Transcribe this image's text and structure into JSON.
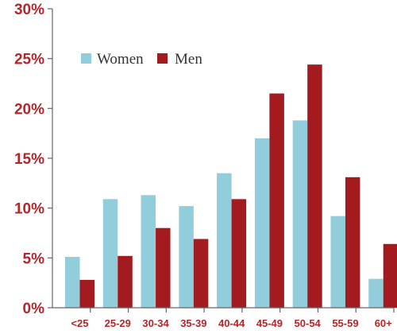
{
  "chart_data": {
    "type": "bar",
    "categories": [
      "<25",
      "25-29",
      "30-34",
      "35-39",
      "40-44",
      "45-49",
      "50-54",
      "55-59",
      "60+"
    ],
    "series": [
      {
        "name": "Women",
        "color": "#92cddc",
        "values": [
          5.1,
          10.9,
          11.3,
          10.2,
          13.5,
          17.0,
          18.8,
          9.2,
          2.9
        ]
      },
      {
        "name": "Men",
        "color": "#a31b1f",
        "values": [
          2.8,
          5.2,
          8.0,
          6.9,
          10.9,
          21.5,
          24.4,
          13.1,
          6.4
        ]
      }
    ],
    "ylim": [
      0,
      30
    ],
    "yticks": [
      0,
      5,
      10,
      15,
      20,
      25,
      30
    ],
    "ytick_labels": [
      "0%",
      "5%",
      "10%",
      "15%",
      "20%",
      "25%",
      "30%"
    ],
    "title": "",
    "xlabel": "",
    "ylabel": "",
    "grid": false,
    "legend_position": "top-left"
  }
}
